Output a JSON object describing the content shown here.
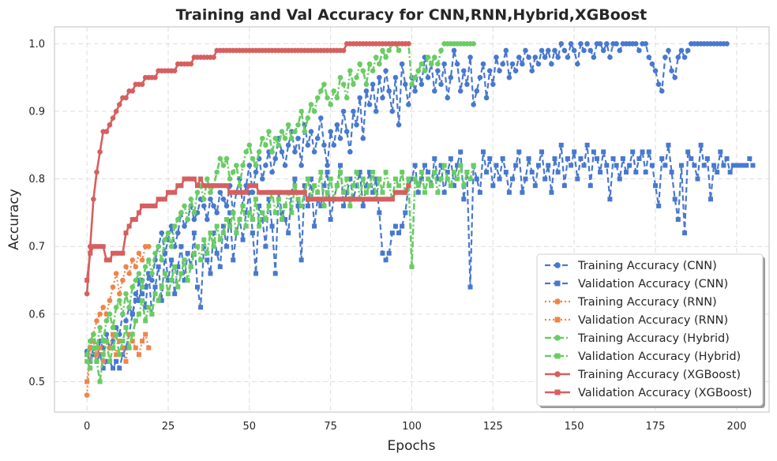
{
  "chart_data": {
    "type": "line",
    "title": "Training and Val Accuracy for CNN,RNN,Hybrid,XGBoost",
    "xlabel": "Epochs",
    "ylabel": "Accuracy",
    "xlim": [
      -10,
      210
    ],
    "ylim": [
      0.455,
      1.025
    ],
    "xticks": [
      0,
      25,
      50,
      75,
      100,
      125,
      150,
      175,
      200
    ],
    "yticks": [
      0.5,
      0.6,
      0.7,
      0.8,
      0.9,
      1.0
    ],
    "grid": true,
    "legend_position": "lower-right",
    "series": [
      {
        "name": "Training Accuracy (CNN)",
        "color": "#4878cf",
        "linestyle": "dashed",
        "marker": "circle",
        "width": 2.2,
        "x0": 0,
        "values": [
          0.545,
          0.55,
          0.54,
          0.53,
          0.56,
          0.55,
          0.57,
          0.55,
          0.56,
          0.58,
          0.57,
          0.6,
          0.59,
          0.61,
          0.6,
          0.63,
          0.62,
          0.65,
          0.64,
          0.66,
          0.65,
          0.68,
          0.7,
          0.72,
          0.69,
          0.71,
          0.73,
          0.7,
          0.72,
          0.75,
          0.73,
          0.74,
          0.76,
          0.74,
          0.75,
          0.77,
          0.76,
          0.74,
          0.77,
          0.76,
          0.75,
          0.78,
          0.77,
          0.76,
          0.79,
          0.75,
          0.78,
          0.8,
          0.76,
          0.79,
          0.82,
          0.78,
          0.81,
          0.83,
          0.8,
          0.82,
          0.84,
          0.81,
          0.83,
          0.86,
          0.84,
          0.82,
          0.85,
          0.87,
          0.84,
          0.86,
          0.82,
          0.88,
          0.85,
          0.87,
          0.84,
          0.86,
          0.89,
          0.85,
          0.82,
          0.87,
          0.85,
          0.88,
          0.86,
          0.9,
          0.87,
          0.84,
          0.9,
          0.88,
          0.92,
          0.86,
          0.93,
          0.91,
          0.94,
          0.9,
          0.95,
          0.92,
          0.96,
          0.93,
          0.9,
          0.95,
          0.88,
          0.97,
          0.94,
          0.91,
          0.95,
          0.93,
          0.96,
          0.94,
          0.98,
          0.95,
          0.97,
          0.93,
          0.96,
          0.94,
          0.97,
          0.92,
          0.95,
          0.99,
          0.97,
          0.93,
          0.96,
          0.94,
          0.98,
          0.91,
          0.93,
          0.95,
          0.97,
          0.92,
          0.96,
          0.94,
          0.98,
          0.96,
          0.97,
          0.99,
          0.95,
          0.97,
          0.96,
          0.98,
          0.97,
          0.99,
          0.98,
          0.96,
          0.98,
          0.97,
          0.99,
          0.98,
          0.99,
          0.97,
          0.99,
          0.98,
          1.0,
          0.99,
          0.98,
          1.0,
          0.99,
          0.97,
          1.0,
          0.99,
          1.0,
          0.99,
          0.98,
          1.0,
          1.0,
          0.99,
          1.0,
          0.98,
          1.0,
          1.0,
          0.99,
          1.0,
          1.0,
          1.0,
          1.0,
          1.0,
          0.99,
          1.0,
          1.0,
          0.98,
          0.97,
          0.96,
          0.94,
          0.93,
          0.98,
          0.99,
          0.96,
          0.95,
          0.98,
          0.99,
          0.98,
          0.99,
          1.0,
          1.0,
          1.0,
          1.0,
          1.0,
          1.0,
          1.0,
          1.0,
          1.0,
          1.0,
          1.0,
          1.0
        ]
      },
      {
        "name": "Validation Accuracy (CNN)",
        "color": "#4878cf",
        "linestyle": "dashed",
        "marker": "square",
        "width": 2.2,
        "x0": 0,
        "values": [
          0.54,
          0.53,
          0.55,
          0.53,
          0.54,
          0.52,
          0.53,
          0.53,
          0.52,
          0.53,
          0.52,
          0.54,
          0.55,
          0.57,
          0.6,
          0.62,
          0.65,
          0.63,
          0.61,
          0.66,
          0.6,
          0.64,
          0.67,
          0.62,
          0.69,
          0.65,
          0.68,
          0.63,
          0.67,
          0.7,
          0.65,
          0.69,
          0.67,
          0.72,
          0.64,
          0.61,
          0.7,
          0.68,
          0.66,
          0.72,
          0.69,
          0.67,
          0.73,
          0.7,
          0.75,
          0.68,
          0.72,
          0.74,
          0.71,
          0.75,
          0.78,
          0.72,
          0.66,
          0.76,
          0.74,
          0.7,
          0.77,
          0.73,
          0.66,
          0.78,
          0.75,
          0.74,
          0.72,
          0.78,
          0.8,
          0.76,
          0.68,
          0.79,
          0.76,
          0.8,
          0.73,
          0.77,
          0.76,
          0.79,
          0.81,
          0.74,
          0.77,
          0.79,
          0.82,
          0.76,
          0.78,
          0.8,
          0.77,
          0.79,
          0.81,
          0.76,
          0.79,
          0.81,
          0.78,
          0.8,
          0.75,
          0.69,
          0.68,
          0.69,
          0.72,
          0.73,
          0.72,
          0.73,
          0.75,
          0.79,
          0.8,
          0.82,
          0.78,
          0.8,
          0.82,
          0.81,
          0.79,
          0.83,
          0.8,
          0.82,
          0.78,
          0.81,
          0.83,
          0.79,
          0.82,
          0.84,
          0.77,
          0.81,
          0.64,
          0.82,
          0.8,
          0.78,
          0.84,
          0.81,
          0.83,
          0.79,
          0.82,
          0.8,
          0.83,
          0.81,
          0.78,
          0.8,
          0.82,
          0.84,
          0.78,
          0.8,
          0.83,
          0.81,
          0.79,
          0.82,
          0.84,
          0.8,
          0.82,
          0.78,
          0.83,
          0.81,
          0.85,
          0.79,
          0.83,
          0.82,
          0.84,
          0.8,
          0.83,
          0.82,
          0.85,
          0.79,
          0.84,
          0.83,
          0.81,
          0.84,
          0.82,
          0.77,
          0.83,
          0.82,
          0.8,
          0.83,
          0.81,
          0.82,
          0.84,
          0.81,
          0.83,
          0.84,
          0.81,
          0.84,
          0.82,
          0.79,
          0.76,
          0.83,
          0.82,
          0.85,
          0.81,
          0.77,
          0.74,
          0.82,
          0.72,
          0.84,
          0.83,
          0.82,
          0.8,
          0.85,
          0.82,
          0.83,
          0.77,
          0.82,
          0.81,
          0.84,
          0.82,
          0.83,
          0.81,
          0.82,
          0.82,
          0.82,
          0.82,
          0.82,
          0.83,
          0.82
        ]
      },
      {
        "name": "Training Accuracy (RNN)",
        "color": "#ee854a",
        "linestyle": "dotted",
        "marker": "circle",
        "width": 2.2,
        "x0": 0,
        "values": [
          0.48,
          0.55,
          0.57,
          0.59,
          0.6,
          0.61,
          0.6,
          0.62,
          0.64,
          0.66,
          0.63,
          0.65,
          0.67,
          0.66,
          0.68,
          0.67,
          0.69,
          0.68,
          0.7,
          0.7
        ]
      },
      {
        "name": "Validation Accuracy (RNN)",
        "color": "#ee854a",
        "linestyle": "dotted",
        "marker": "square",
        "width": 2.2,
        "x0": 0,
        "values": [
          0.5,
          0.55,
          0.56,
          0.54,
          0.55,
          0.53,
          0.56,
          0.55,
          0.57,
          0.54,
          0.56,
          0.55,
          0.53,
          0.57,
          0.56,
          0.55,
          0.54,
          0.56,
          0.57,
          0.55
        ]
      },
      {
        "name": "Training Accuracy (Hybrid)",
        "color": "#6acc64",
        "linestyle": "dashdot",
        "marker": "circle",
        "width": 2.6,
        "x0": 0,
        "values": [
          0.54,
          0.56,
          0.57,
          0.55,
          0.58,
          0.56,
          0.59,
          0.6,
          0.58,
          0.61,
          0.62,
          0.6,
          0.63,
          0.61,
          0.64,
          0.65,
          0.66,
          0.64,
          0.67,
          0.68,
          0.66,
          0.69,
          0.7,
          0.68,
          0.71,
          0.72,
          0.7,
          0.73,
          0.74,
          0.75,
          0.76,
          0.74,
          0.77,
          0.75,
          0.78,
          0.79,
          0.77,
          0.8,
          0.78,
          0.79,
          0.81,
          0.83,
          0.82,
          0.83,
          0.8,
          0.81,
          0.82,
          0.79,
          0.82,
          0.84,
          0.85,
          0.83,
          0.82,
          0.84,
          0.86,
          0.85,
          0.87,
          0.84,
          0.86,
          0.85,
          0.87,
          0.86,
          0.88,
          0.86,
          0.87,
          0.88,
          0.9,
          0.87,
          0.89,
          0.91,
          0.9,
          0.92,
          0.93,
          0.94,
          0.92,
          0.91,
          0.93,
          0.92,
          0.95,
          0.94,
          0.92,
          0.96,
          0.94,
          0.95,
          0.97,
          0.96,
          0.94,
          0.97,
          0.96,
          0.98,
          0.97,
          0.99,
          0.98,
          0.99,
          1.0,
          1.0,
          0.99,
          1.0,
          1.0,
          1.0,
          0.94,
          0.95,
          0.96,
          0.97,
          0.96,
          0.98,
          0.97,
          0.98,
          0.97,
          0.99,
          1.0,
          1.0,
          1.0,
          1.0,
          1.0,
          1.0,
          1.0,
          1.0,
          1.0,
          1.0
        ]
      },
      {
        "name": "Validation Accuracy (Hybrid)",
        "color": "#6acc64",
        "linestyle": "dashdot",
        "marker": "square",
        "width": 2.6,
        "x0": 0,
        "values": [
          0.53,
          0.52,
          0.55,
          0.53,
          0.5,
          0.54,
          0.56,
          0.53,
          0.55,
          0.57,
          0.54,
          0.56,
          0.58,
          0.55,
          0.57,
          0.59,
          0.6,
          0.62,
          0.59,
          0.61,
          0.6,
          0.63,
          0.62,
          0.64,
          0.66,
          0.63,
          0.65,
          0.67,
          0.64,
          0.66,
          0.68,
          0.65,
          0.67,
          0.69,
          0.7,
          0.68,
          0.71,
          0.69,
          0.72,
          0.7,
          0.73,
          0.71,
          0.72,
          0.74,
          0.73,
          0.75,
          0.72,
          0.74,
          0.76,
          0.73,
          0.75,
          0.74,
          0.77,
          0.73,
          0.75,
          0.74,
          0.76,
          0.78,
          0.75,
          0.77,
          0.74,
          0.76,
          0.78,
          0.75,
          0.79,
          0.77,
          0.76,
          0.78,
          0.8,
          0.77,
          0.79,
          0.78,
          0.81,
          0.76,
          0.78,
          0.8,
          0.77,
          0.79,
          0.81,
          0.78,
          0.8,
          0.76,
          0.79,
          0.81,
          0.77,
          0.8,
          0.78,
          0.79,
          0.81,
          0.77,
          0.8,
          0.78,
          0.81,
          0.79,
          0.77,
          0.8,
          0.79,
          0.81,
          0.78,
          0.8,
          0.67,
          0.8,
          0.79,
          0.81,
          0.78,
          0.8,
          0.79,
          0.81,
          0.78,
          0.8,
          0.82,
          0.8,
          0.79,
          0.81,
          0.8,
          0.82,
          0.79,
          0.81,
          0.8,
          0.82
        ]
      },
      {
        "name": "Training Accuracy (XGBoost)",
        "color": "#d65f5f",
        "linestyle": "solid",
        "marker": "circle",
        "width": 2.6,
        "x0": 0,
        "values": [
          0.63,
          0.7,
          0.77,
          0.81,
          0.84,
          0.87,
          0.87,
          0.88,
          0.89,
          0.9,
          0.91,
          0.92,
          0.92,
          0.93,
          0.93,
          0.94,
          0.94,
          0.94,
          0.95,
          0.95,
          0.95,
          0.95,
          0.96,
          0.96,
          0.96,
          0.96,
          0.96,
          0.96,
          0.97,
          0.97,
          0.97,
          0.97,
          0.97,
          0.98,
          0.98,
          0.98,
          0.98,
          0.98,
          0.98,
          0.98,
          0.99,
          0.99,
          0.99,
          0.99,
          0.99,
          0.99,
          0.99,
          0.99,
          0.99,
          0.99,
          0.99,
          0.99,
          0.99,
          0.99,
          0.99,
          0.99,
          0.99,
          0.99,
          0.99,
          0.99,
          0.99,
          0.99,
          0.99,
          0.99,
          0.99,
          0.99,
          0.99,
          0.99,
          0.99,
          0.99,
          0.99,
          0.99,
          0.99,
          0.99,
          0.99,
          0.99,
          0.99,
          0.99,
          0.99,
          0.99,
          1.0,
          1.0,
          1.0,
          1.0,
          1.0,
          1.0,
          1.0,
          1.0,
          1.0,
          1.0,
          1.0,
          1.0,
          1.0,
          1.0,
          1.0,
          1.0,
          1.0,
          1.0,
          1.0,
          1.0
        ]
      },
      {
        "name": "Validation Accuracy (XGBoost)",
        "color": "#d65f5f",
        "linestyle": "solid",
        "marker": "square",
        "width": 2.6,
        "x0": 0,
        "values": [
          0.65,
          0.69,
          0.7,
          0.7,
          0.7,
          0.7,
          0.68,
          0.68,
          0.69,
          0.69,
          0.69,
          0.69,
          0.72,
          0.73,
          0.74,
          0.74,
          0.75,
          0.76,
          0.76,
          0.76,
          0.76,
          0.76,
          0.77,
          0.77,
          0.77,
          0.78,
          0.78,
          0.78,
          0.79,
          0.79,
          0.8,
          0.8,
          0.8,
          0.8,
          0.79,
          0.8,
          0.79,
          0.79,
          0.79,
          0.79,
          0.79,
          0.79,
          0.79,
          0.79,
          0.78,
          0.78,
          0.78,
          0.78,
          0.78,
          0.78,
          0.79,
          0.79,
          0.79,
          0.78,
          0.78,
          0.78,
          0.78,
          0.78,
          0.78,
          0.78,
          0.78,
          0.78,
          0.78,
          0.78,
          0.78,
          0.78,
          0.78,
          0.78,
          0.77,
          0.77,
          0.77,
          0.77,
          0.77,
          0.77,
          0.77,
          0.77,
          0.77,
          0.77,
          0.77,
          0.77,
          0.77,
          0.77,
          0.77,
          0.77,
          0.77,
          0.77,
          0.77,
          0.77,
          0.77,
          0.77,
          0.77,
          0.77,
          0.77,
          0.77,
          0.77,
          0.78,
          0.78,
          0.78,
          0.78,
          0.79
        ]
      }
    ]
  }
}
